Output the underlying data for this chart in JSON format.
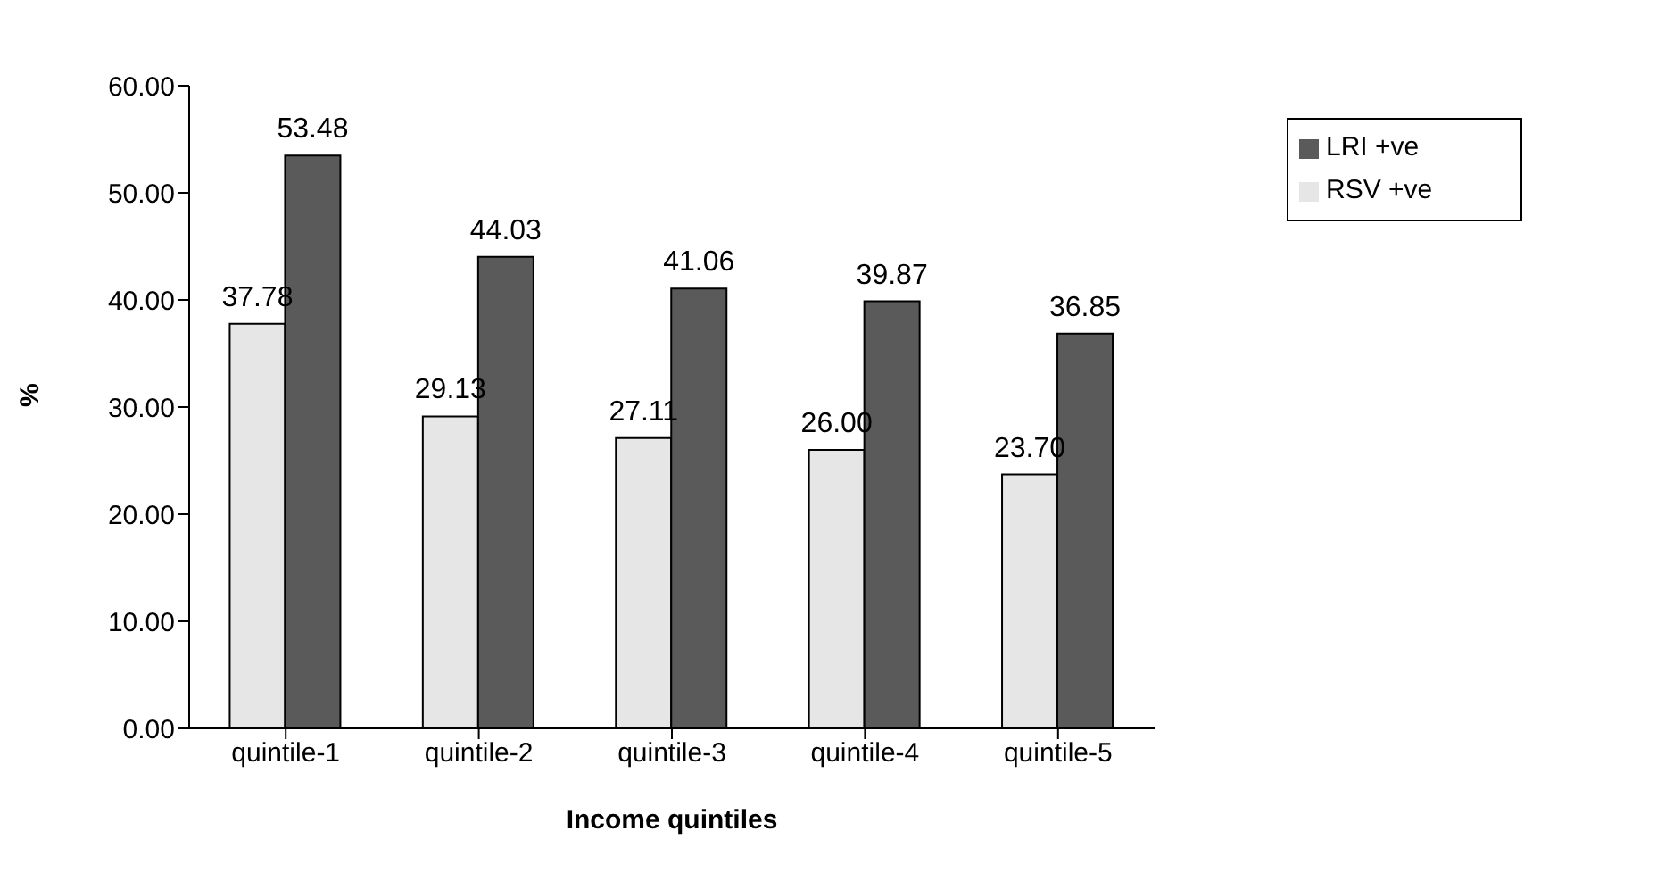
{
  "chart_data": {
    "type": "bar",
    "xlabel": "Income quintiles",
    "ylabel": "%",
    "categories": [
      "quintile-1",
      "quintile-2",
      "quintile-3",
      "quintile-4",
      "quintile-5"
    ],
    "series": [
      {
        "name": "RSV +ve",
        "color": "#e6e6e6",
        "values": [
          37.78,
          29.13,
          27.11,
          26.0,
          23.7
        ],
        "value_labels": [
          "37.78",
          "29.13",
          "27.11",
          "26.00",
          "23.70"
        ]
      },
      {
        "name": "LRI +ve",
        "color": "#5a5a5a",
        "values": [
          53.48,
          44.03,
          41.06,
          39.87,
          36.85
        ],
        "value_labels": [
          "53.48",
          "44.03",
          "41.06",
          "39.87",
          "36.85"
        ]
      }
    ],
    "ylim": [
      0,
      60
    ],
    "yticks": [
      {
        "value": 0,
        "label": "0.00"
      },
      {
        "value": 10,
        "label": "10.00"
      },
      {
        "value": 20,
        "label": "20.00"
      },
      {
        "value": 30,
        "label": "30.00"
      },
      {
        "value": 40,
        "label": "40.00"
      },
      {
        "value": 50,
        "label": "50.00"
      },
      {
        "value": 60,
        "label": "60.00"
      }
    ],
    "grid": false,
    "legend": "top right"
  }
}
